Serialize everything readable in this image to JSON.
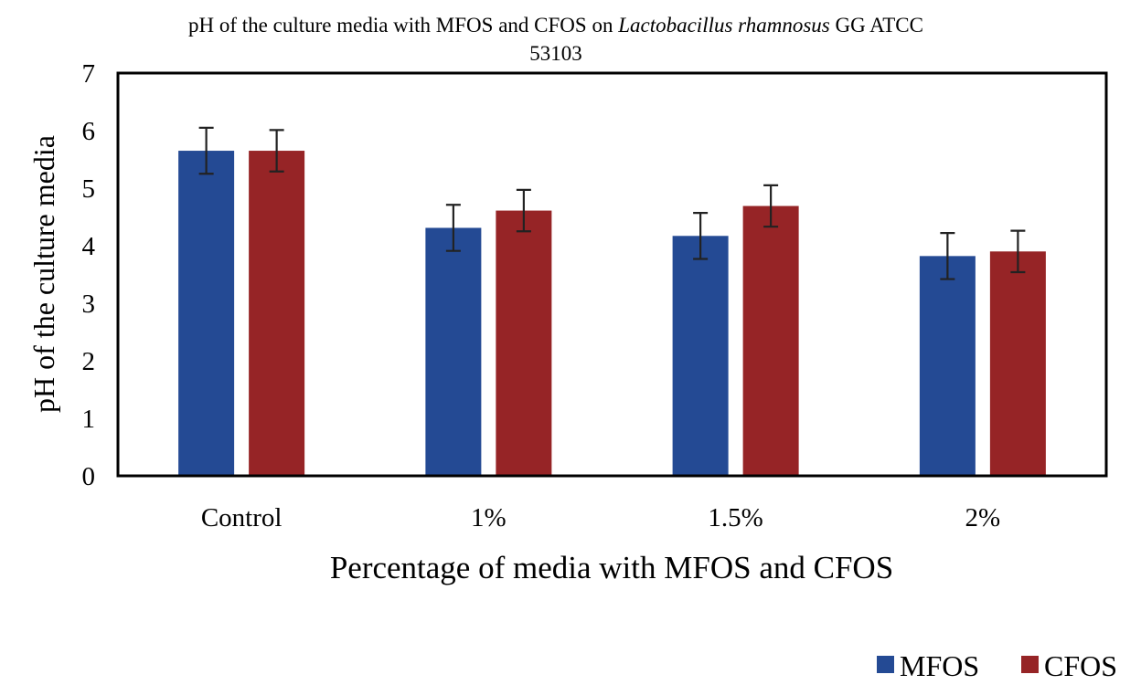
{
  "chart_data": {
    "type": "bar",
    "title": {
      "line1_prefix": "pH of the culture media with MFOS and CFOS on ",
      "line1_italic": "Lactobacillus rhamnosus",
      "line1_suffix": " GG ATCC",
      "line2": "53103"
    },
    "xlabel": "Percentage of media with MFOS and CFOS",
    "ylabel": "pH of the culture media",
    "categories": [
      "Control",
      "1%",
      "1.5%",
      "2%"
    ],
    "ylim": [
      0,
      7
    ],
    "yticks": [
      "0",
      "1",
      "2",
      "3",
      "4",
      "5",
      "6",
      "7"
    ],
    "grid": false,
    "legend_position": "bottom-right",
    "series": [
      {
        "name": "MFOS",
        "color": "#244a94",
        "values": [
          5.65,
          4.31,
          4.17,
          3.82
        ],
        "errors": [
          0.4,
          0.4,
          0.4,
          0.4
        ]
      },
      {
        "name": "CFOS",
        "color": "#962426",
        "values": [
          5.65,
          4.61,
          4.69,
          3.9
        ],
        "errors": [
          0.36,
          0.36,
          0.36,
          0.36
        ]
      }
    ]
  }
}
